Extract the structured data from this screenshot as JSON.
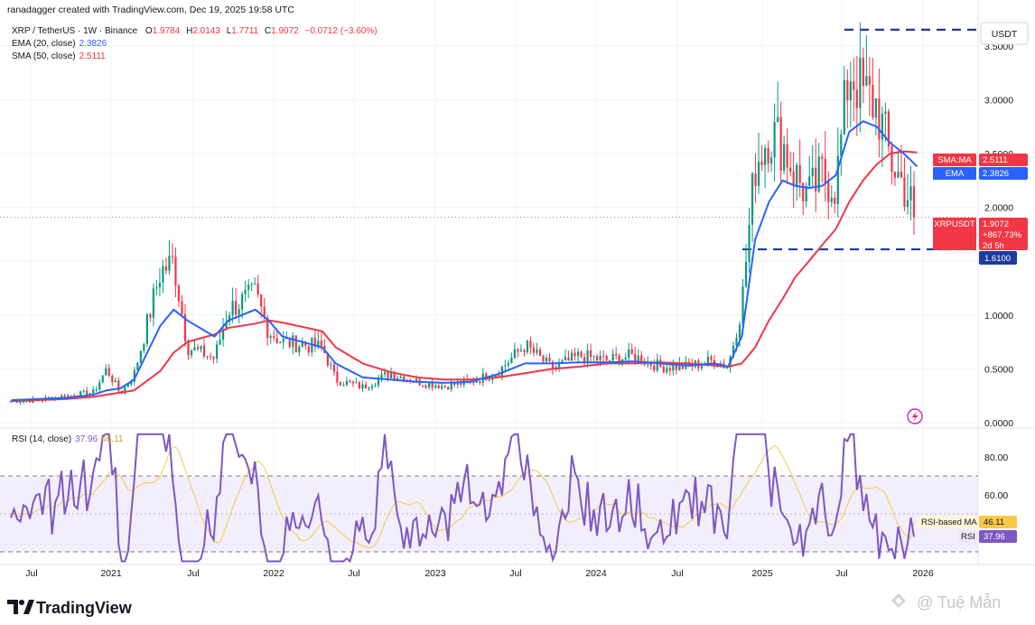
{
  "header": {
    "credit": "ranadagger created with TradingView.com, Dec 19, 2025 19:58 UTC",
    "symbol_line": "XRP / TetherUS · 1W · Binance",
    "ohlc": {
      "o_label": "O",
      "o": "1.9784",
      "h_label": "H",
      "h": "2.0143",
      "l_label": "L",
      "l": "1.7711",
      "c_label": "C",
      "c": "1.9072",
      "change": "−0.0712 (−3.60%)"
    },
    "ema_label": "EMA (20, close)",
    "ema_value": "2.3826",
    "sma_label": "SMA (50, close)",
    "sma_value": "2.5111"
  },
  "price_axis": {
    "currency": "USDT",
    "ticks": [
      "3.5000",
      "3.0000",
      "2.5000",
      "2.0000",
      "1.5000",
      "1.0000",
      "0.5000",
      "0.0000"
    ],
    "tick_values": [
      3.5,
      3.0,
      2.5,
      2.0,
      1.5,
      1.0,
      0.5,
      0.0
    ],
    "ylim": [
      0.0,
      3.8
    ]
  },
  "badges": {
    "sma": {
      "label": "SMA:MA",
      "value": "2.5111"
    },
    "ema": {
      "label": "EMA",
      "value": "2.3826"
    },
    "symbol": {
      "label": "XRPUSDT",
      "value": "1.9072",
      "pct": "+867.73%",
      "countdown": "2d 5h"
    },
    "level": "1.6100",
    "rsi_ma": {
      "label": "RSI-based MA",
      "value": "46.11"
    },
    "rsi": {
      "label": "RSI",
      "value": "37.96"
    }
  },
  "rsi_panel": {
    "label": "RSI (14, close)",
    "value": "37.96",
    "ma_value": "46.11",
    "ticks": [
      "80.00",
      "60.00"
    ],
    "tick_values": [
      80,
      60
    ],
    "upper_band": 70,
    "lower_band": 30,
    "mid": 50
  },
  "time_axis": [
    "Jul",
    "2021",
    "Jul",
    "2022",
    "Jul",
    "2023",
    "Jul",
    "2024",
    "Jul",
    "2025",
    "Jul",
    "2026"
  ],
  "footer": {
    "logo": "TradingView",
    "watermark": "@ Tuệ Mẫn"
  },
  "colors": {
    "up": "#089981",
    "down": "#f23645",
    "ema": "#2962ff",
    "sma": "#f23645",
    "rsi": "#7e57c2",
    "rsi_ma": "#f7c948",
    "level": "#1e3a9e",
    "band": "#f3eefc",
    "grid": "#f0f3fa"
  },
  "chart_data": {
    "type": "candlestick",
    "interval": "1W",
    "symbol": "XRPUSDT",
    "horizontal_levels": [
      3.65,
      1.61
    ],
    "approx_path": {
      "dates": [
        "2020-05",
        "2020-07",
        "2020-09",
        "2020-11",
        "2020-12",
        "2021-01",
        "2021-02",
        "2021-04",
        "2021-05",
        "2021-06",
        "2021-08",
        "2021-09",
        "2021-11",
        "2021-12",
        "2022-01",
        "2022-04",
        "2022-05",
        "2022-07",
        "2022-09",
        "2022-11",
        "2023-01",
        "2023-03",
        "2023-05",
        "2023-07",
        "2023-09",
        "2023-11",
        "2024-01",
        "2024-03",
        "2024-05",
        "2024-07",
        "2024-09",
        "2024-10",
        "2024-11",
        "2024-12",
        "2025-01",
        "2025-02",
        "2025-03",
        "2025-04",
        "2025-05",
        "2025-06",
        "2025-07",
        "2025-08",
        "2025-09",
        "2025-10",
        "2025-11",
        "2025-12"
      ],
      "close": [
        0.2,
        0.21,
        0.25,
        0.28,
        0.5,
        0.27,
        0.45,
        1.4,
        1.5,
        0.7,
        0.6,
        1.05,
        1.2,
        0.85,
        0.75,
        0.7,
        0.4,
        0.33,
        0.46,
        0.38,
        0.34,
        0.38,
        0.47,
        0.72,
        0.5,
        0.62,
        0.58,
        0.62,
        0.52,
        0.52,
        0.58,
        0.52,
        1.1,
        2.4,
        2.7,
        2.6,
        2.3,
        2.1,
        2.3,
        2.2,
        3.3,
        3.05,
        2.95,
        2.45,
        2.2,
        1.91
      ]
    },
    "ema20_path": [
      0.21,
      0.22,
      0.23,
      0.26,
      0.3,
      0.32,
      0.4,
      0.9,
      1.05,
      0.95,
      0.8,
      0.95,
      1.05,
      0.95,
      0.8,
      0.7,
      0.55,
      0.42,
      0.4,
      0.38,
      0.37,
      0.38,
      0.45,
      0.55,
      0.55,
      0.56,
      0.56,
      0.57,
      0.55,
      0.53,
      0.55,
      0.52,
      0.8,
      1.7,
      2.05,
      2.25,
      2.2,
      2.18,
      2.2,
      2.3,
      2.7,
      2.8,
      2.75,
      2.6,
      2.5,
      2.38
    ],
    "sma50_path": [
      0.2,
      0.21,
      0.22,
      0.24,
      0.26,
      0.28,
      0.3,
      0.48,
      0.65,
      0.75,
      0.82,
      0.88,
      0.92,
      0.95,
      0.93,
      0.85,
      0.7,
      0.55,
      0.47,
      0.42,
      0.4,
      0.4,
      0.42,
      0.46,
      0.5,
      0.52,
      0.55,
      0.55,
      0.56,
      0.55,
      0.53,
      0.52,
      0.55,
      0.7,
      0.95,
      1.15,
      1.35,
      1.5,
      1.65,
      1.8,
      2.05,
      2.25,
      2.4,
      2.5,
      2.52,
      2.51
    ],
    "rsi": {
      "current": 37.96,
      "ma": 46.11,
      "bands": [
        30,
        70
      ]
    },
    "x_tick_labels": [
      "Jul",
      "2021",
      "Jul",
      "2022",
      "Jul",
      "2023",
      "Jul",
      "2024",
      "Jul",
      "2025",
      "Jul",
      "2026"
    ]
  }
}
